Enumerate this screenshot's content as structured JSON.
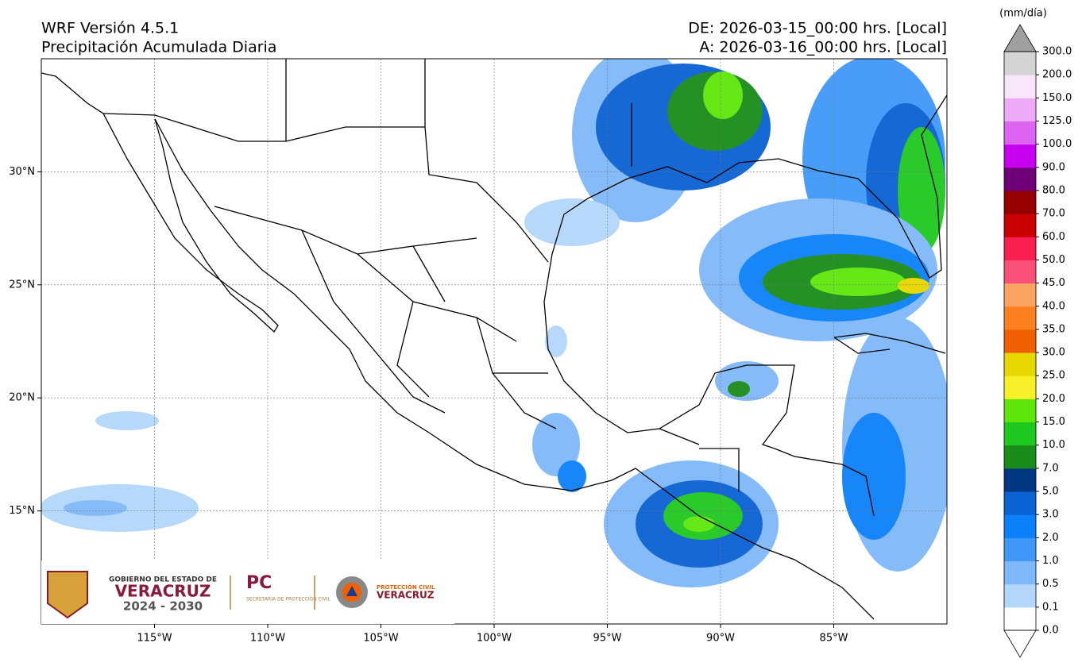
{
  "header": {
    "title": "WRF Versión 4.5.1",
    "subtitle": "Precipitación Acumulada Diaria",
    "from": "DE: 2026-03-15_00:00 hrs. [Local]",
    "to": "A: 2026-03-16_00:00 hrs. [Local]"
  },
  "map": {
    "xlim": [
      -120,
      -80
    ],
    "ylim": [
      10,
      35
    ],
    "grid": true,
    "xticks": [
      {
        "value": -115,
        "label": "115°W"
      },
      {
        "value": -110,
        "label": "110°W"
      },
      {
        "value": -105,
        "label": "105°W"
      },
      {
        "value": -100,
        "label": "100°W"
      },
      {
        "value": -95,
        "label": "95°W"
      },
      {
        "value": -90,
        "label": "90°W"
      },
      {
        "value": -85,
        "label": "85°W"
      }
    ],
    "yticks": [
      {
        "value": 15,
        "label": "15°N"
      },
      {
        "value": 20,
        "label": "20°N"
      },
      {
        "value": 25,
        "label": "25°N"
      },
      {
        "value": 30,
        "label": "30°N"
      }
    ]
  },
  "colorbar": {
    "unit": "(mm/día)",
    "levels": [
      {
        "value": 0,
        "label": "0.0"
      },
      {
        "value": 0.1,
        "label": "0.1"
      },
      {
        "value": 0.5,
        "label": "0.5"
      },
      {
        "value": 1,
        "label": "1.0"
      },
      {
        "value": 2,
        "label": "2.0"
      },
      {
        "value": 3,
        "label": "3.0"
      },
      {
        "value": 5,
        "label": "5.0"
      },
      {
        "value": 7,
        "label": "7.0"
      },
      {
        "value": 10,
        "label": "10.0"
      },
      {
        "value": 15,
        "label": "15.0"
      },
      {
        "value": 20,
        "label": "20.0"
      },
      {
        "value": 25,
        "label": "25.0"
      },
      {
        "value": 30,
        "label": "30.0"
      },
      {
        "value": 35,
        "label": "35.0"
      },
      {
        "value": 40,
        "label": "40.0"
      },
      {
        "value": 45,
        "label": "45.0"
      },
      {
        "value": 50,
        "label": "50.0"
      },
      {
        "value": 60,
        "label": "60.0"
      },
      {
        "value": 70,
        "label": "70.0"
      },
      {
        "value": 80,
        "label": "80.0"
      },
      {
        "value": 90,
        "label": "90.0"
      },
      {
        "value": 100,
        "label": "100.0"
      },
      {
        "value": 125,
        "label": "125.0"
      },
      {
        "value": 150,
        "label": "150.0"
      },
      {
        "value": 200,
        "label": "200.0"
      },
      {
        "value": 300,
        "label": "300.0"
      }
    ],
    "colors": [
      "#ffffff",
      "#b3d6fb",
      "#7fb8f8",
      "#3f98f8",
      "#0b80f8",
      "#0a62d3",
      "#003780",
      "#1a8c1a",
      "#1ec81e",
      "#5ee60a",
      "#f8f028",
      "#e6d800",
      "#f06000",
      "#fa8020",
      "#faa464",
      "#f85078",
      "#f81e50",
      "#c80000",
      "#960000",
      "#6e0078",
      "#c800f0",
      "#dc64f0",
      "#eeaaf6",
      "#f8e6fa",
      "#d4d4d4"
    ],
    "over_color": "#a0a0a0",
    "under_color": "#ffffff"
  },
  "logos": {
    "gov_line": "GOBIERNO DEL ESTADO DE",
    "gov_name": "VERACRUZ",
    "gov_years": "2024 - 2030",
    "pc": "PC",
    "pc_sub": "SECRETARÍA DE PROTECCIÓN CIVIL",
    "pcv_line": "PROTECCIÓN CIVIL",
    "pcv_name": "VERACRUZ"
  }
}
